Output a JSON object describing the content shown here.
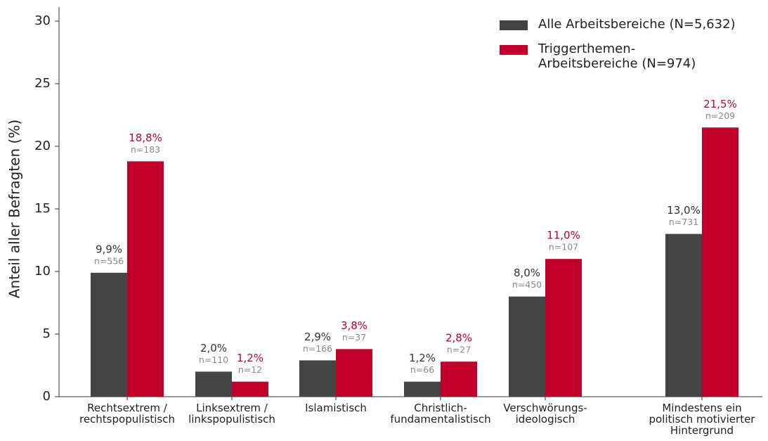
{
  "chart_data": {
    "type": "bar",
    "y_label": "Anteil aller Befragten (%)",
    "categories": [
      "Rechtsextrem /\nrechtspopulistisch",
      "Linksextrem /\nlinkspopulistisch",
      "Islamistisch",
      "Christlich-\nfundamentalistisch",
      "Verschwörungs-\nideologisch",
      "Mindestens ein\npolitisch motivierter\nHintergrund"
    ],
    "series": [
      {
        "name": "Alle Arbeitsbereiche (N=5,632)",
        "color": "#444444",
        "values": [
          9.9,
          2.0,
          2.9,
          1.2,
          8.0,
          13.0
        ],
        "value_labels": [
          "9,9%",
          "2,0%",
          "2,9%",
          "1,2%",
          "8,0%",
          "13,0%"
        ],
        "count_labels": [
          "n=556",
          "n=110",
          "n=166",
          "n=66",
          "n=450",
          "n=731"
        ]
      },
      {
        "name": "Triggerthemen-\nArbeitsbereiche (N=974)",
        "color": "#c0002a",
        "values": [
          18.8,
          1.2,
          3.8,
          2.8,
          11.0,
          21.5
        ],
        "value_labels": [
          "18,8%",
          "1,2%",
          "3,8%",
          "2,8%",
          "11,0%",
          "21,5%"
        ],
        "count_labels": [
          "n=183",
          "n=12",
          "n=37",
          "n=27",
          "n=107",
          "n=209"
        ]
      }
    ],
    "ylim": [
      0,
      30
    ],
    "yticks": [
      0,
      5,
      10,
      15,
      20,
      25,
      30
    ],
    "grid": false,
    "legend": "upper right"
  }
}
